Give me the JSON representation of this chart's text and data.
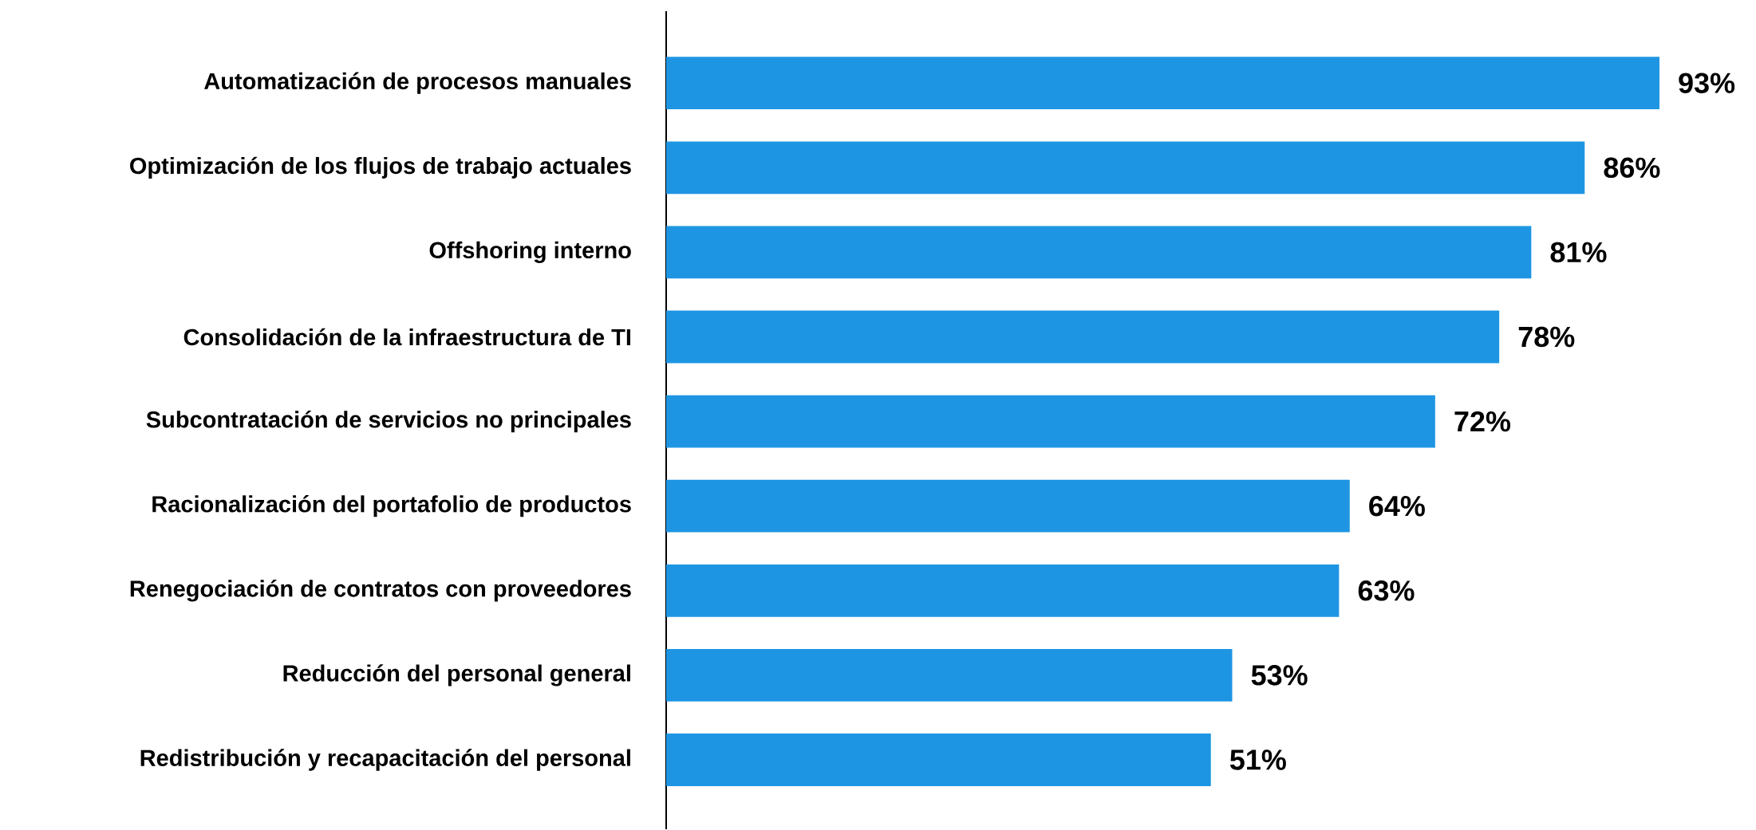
{
  "chart_data": {
    "type": "bar",
    "orientation": "horizontal",
    "categories": [
      "Automatización de procesos manuales",
      "Optimización de los flujos de trabajo actuales",
      "Offshoring interno",
      "Consolidación de la infraestructura de TI",
      "Subcontratación de servicios no principales",
      "Racionalización del portafolio de productos",
      "Renegociación de contratos con proveedores",
      "Reducción del personal general",
      "Redistribución y recapacitación del personal"
    ],
    "values": [
      93,
      86,
      81,
      78,
      72,
      64,
      63,
      53,
      51
    ],
    "value_labels": [
      "93%",
      "86%",
      "81%",
      "78%",
      "72%",
      "64%",
      "63%",
      "53%",
      "51%"
    ],
    "color": "#1e95e3"
  }
}
